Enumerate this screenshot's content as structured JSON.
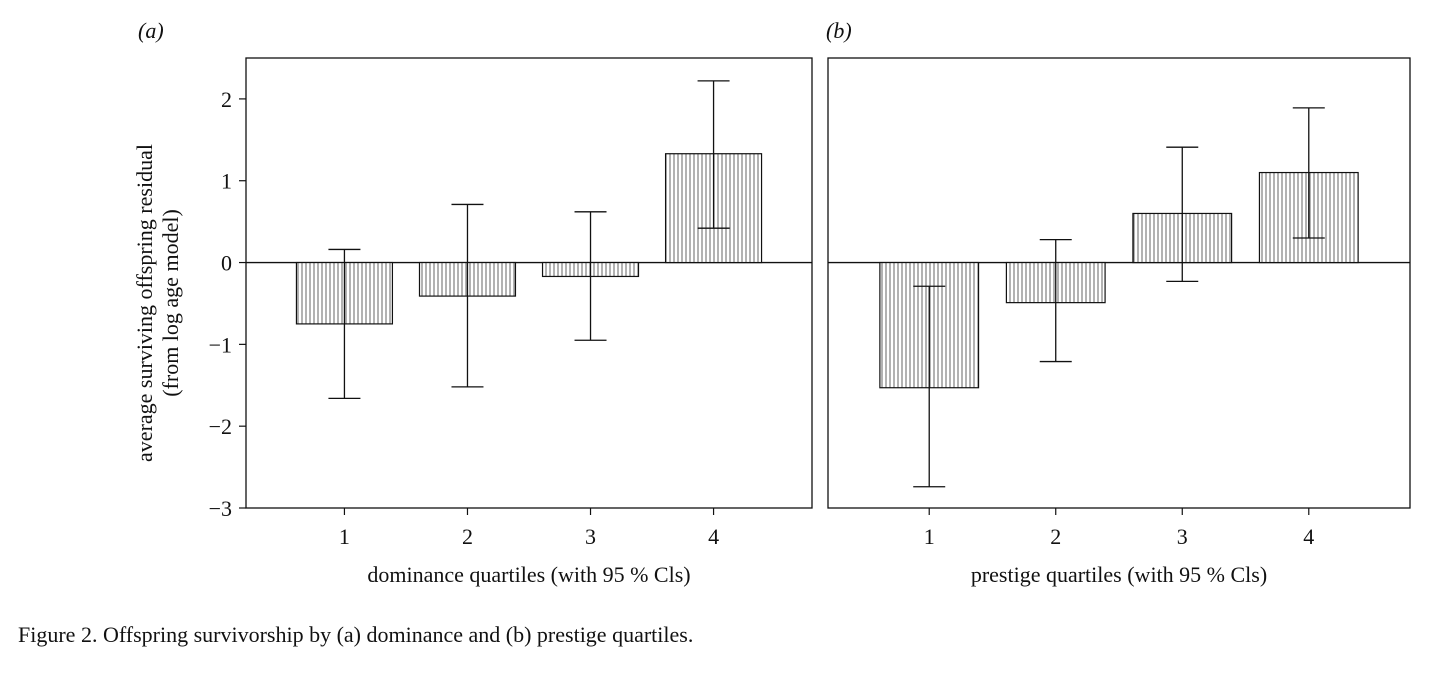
{
  "caption": "Figure 2. Offspring survivorship by (a) dominance and (b) prestige quartiles.",
  "chart_data": [
    {
      "type": "bar",
      "panel_label": "(a)",
      "categories": [
        "1",
        "2",
        "3",
        "4"
      ],
      "values": [
        -0.75,
        -0.41,
        -0.17,
        1.33
      ],
      "ci_lower": [
        -1.66,
        -1.52,
        -0.95,
        0.42
      ],
      "ci_upper": [
        0.16,
        0.71,
        0.62,
        2.22
      ],
      "xlabel": "dominance quartiles (with 95 % Cls)",
      "ylabel_lines": [
        "average surviving offspring residual",
        "(from log age model)"
      ],
      "ylim": [
        -3,
        2.5
      ],
      "yticks": [
        -3,
        -2,
        -1,
        0,
        1,
        2
      ],
      "ytick_labels": [
        "−3",
        "−2",
        "−1",
        "0",
        "1",
        "2"
      ],
      "zero_line": true,
      "grid": false
    },
    {
      "type": "bar",
      "panel_label": "(b)",
      "categories": [
        "1",
        "2",
        "3",
        "4"
      ],
      "values": [
        -1.53,
        -0.49,
        0.6,
        1.1
      ],
      "ci_lower": [
        -2.74,
        -1.21,
        -0.23,
        0.3
      ],
      "ci_upper": [
        -0.29,
        0.28,
        1.41,
        1.89
      ],
      "xlabel": "prestige quartiles (with 95 % Cls)",
      "ylim": [
        -3,
        2.5
      ],
      "zero_line": true,
      "grid": false
    }
  ]
}
